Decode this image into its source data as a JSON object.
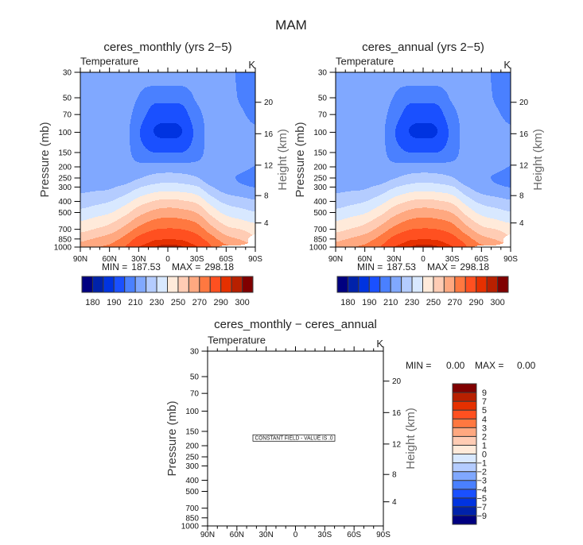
{
  "figure": {
    "title": "MAM"
  },
  "chart_data": [
    {
      "type": "heatmap",
      "title": "ceres_monthly (yrs 2−5)",
      "left_string": "Temperature",
      "right_string": "K",
      "xlabel": "",
      "ylabel": "Pressure (mb)",
      "y2label": "Height (km)",
      "xlim": [
        90,
        -90
      ],
      "ylim": [
        30,
        1000
      ],
      "yscale": "log",
      "grid": false,
      "x_ticks": {
        "values": [
          90,
          60,
          30,
          0,
          -30,
          -60,
          -90
        ],
        "labels": [
          "90N",
          "60N",
          "30N",
          "0",
          "30S",
          "60S",
          "90S"
        ],
        "minor_step": 10
      },
      "y_ticks": [
        30,
        50,
        70,
        100,
        150,
        200,
        250,
        300,
        400,
        500,
        700,
        850,
        1000
      ],
      "y2_ticks": [
        4,
        8,
        12,
        16,
        20
      ],
      "stats": {
        "min_label": "MIN =",
        "min": "187.53",
        "max_label": "MAX =",
        "max": "298.18"
      },
      "colorbar": {
        "placement": "bottom",
        "levels": [
          180,
          185,
          190,
          200,
          210,
          220,
          230,
          240,
          250,
          260,
          270,
          280,
          290,
          295,
          300
        ],
        "label_levels": [
          180,
          190,
          210,
          230,
          250,
          270,
          290,
          300
        ],
        "labels": [
          "180",
          "190",
          "210",
          "230",
          "250",
          "270",
          "290",
          "300"
        ],
        "colors": [
          "#000080",
          "#0022AA",
          "#0033E0",
          "#1A50FF",
          "#4A80FF",
          "#80A8FF",
          "#B4CCFF",
          "#D8E8FF",
          "#FFEADA",
          "#FFCCB4",
          "#FFA880",
          "#FF7840",
          "#FF5020",
          "#E53000",
          "#B82000",
          "#800000"
        ]
      },
      "lat": [
        90,
        75,
        60,
        45,
        30,
        15,
        0,
        -15,
        -30,
        -45,
        -60,
        -75,
        -90
      ],
      "pressure": [
        30,
        50,
        70,
        100,
        150,
        200,
        250,
        300,
        400,
        500,
        600,
        700,
        850,
        925,
        1000
      ],
      "values": [
        [
          216,
          215,
          214.5,
          214,
          214,
          214.5,
          215.5,
          217.5,
          224.2,
          232.9,
          240.5,
          246.9,
          256.5,
          261,
          263.5
        ],
        [
          216,
          215,
          214.5,
          214.5,
          214.5,
          215,
          216,
          218,
          226.8,
          235.8,
          243.6,
          250.5,
          260.7,
          265.2,
          268.5
        ],
        [
          216,
          215.5,
          215,
          215,
          215.5,
          216,
          217,
          218.8,
          229.6,
          239,
          247.5,
          255,
          264.6,
          268.7,
          273
        ],
        [
          215,
          214.5,
          214,
          214,
          214,
          214,
          215,
          222.6,
          235.6,
          246.2,
          255.4,
          263.1,
          272.6,
          276.7,
          279.3
        ],
        [
          213.5,
          209.6,
          205.5,
          201,
          205,
          212.4,
          219.3,
          229.1,
          244.3,
          256,
          265.3,
          273.1,
          282.9,
          286.5,
          289.8
        ],
        [
          216.5,
          203.5,
          195.9,
          190.2,
          200.1,
          213.3,
          223.5,
          233.7,
          250.3,
          262.5,
          271.7,
          279.3,
          288.2,
          291.6,
          294.3
        ],
        [
          216.5,
          203.5,
          194.5,
          187.53,
          200.2,
          213.7,
          225.2,
          235.4,
          252.6,
          264.8,
          273.8,
          280.9,
          289.4,
          293.4,
          298.18
        ],
        [
          216.5,
          203.8,
          196,
          190.2,
          200.1,
          213.5,
          224,
          234.3,
          251.1,
          263.4,
          272.5,
          279.9,
          288.5,
          292.1,
          295.4
        ],
        [
          214.5,
          211.5,
          207,
          203.5,
          206,
          213,
          220.7,
          231.2,
          247.4,
          259.4,
          268.4,
          275.5,
          283.9,
          287.4,
          290.2
        ],
        [
          214,
          213.5,
          213.5,
          214,
          214,
          213.5,
          213,
          221,
          235.2,
          246.4,
          255.8,
          263.9,
          273.9,
          278.1,
          280
        ],
        [
          212.5,
          212.5,
          212.5,
          213,
          213,
          212.5,
          211.3,
          214.5,
          227.1,
          237.1,
          245.8,
          253.6,
          263.6,
          268.3,
          null
        ],
        [
          208.5,
          209.3,
          210.8,
          212,
          212,
          211.5,
          209.3,
          212,
          224,
          233.7,
          242,
          250,
          258.9,
          263,
          null
        ],
        [
          206,
          207,
          208.5,
          211,
          211.5,
          209.8,
          207.5,
          209.8,
          221.3,
          230.6,
          238.6,
          245.3,
          null,
          null,
          null
        ]
      ]
    },
    {
      "type": "heatmap",
      "title": "ceres_annual (yrs 2−5)",
      "left_string": "Temperature",
      "right_string": "K",
      "xlabel": "",
      "ylabel": "Pressure (mb)",
      "y2label": "Height (km)",
      "xlim": [
        90,
        -90
      ],
      "ylim": [
        30,
        1000
      ],
      "yscale": "log",
      "grid": false,
      "x_ticks": {
        "values": [
          90,
          60,
          30,
          0,
          -30,
          -60,
          -90
        ],
        "labels": [
          "90N",
          "60N",
          "30N",
          "0",
          "30S",
          "60S",
          "90S"
        ],
        "minor_step": 10
      },
      "y_ticks": [
        30,
        50,
        70,
        100,
        150,
        200,
        250,
        300,
        400,
        500,
        700,
        850,
        1000
      ],
      "y2_ticks": [
        4,
        8,
        12,
        16,
        20
      ],
      "stats": {
        "min_label": "MIN =",
        "min": "187.53",
        "max_label": "MAX =",
        "max": "298.18"
      },
      "colorbar": {
        "placement": "bottom",
        "levels": [
          180,
          185,
          190,
          200,
          210,
          220,
          230,
          240,
          250,
          260,
          270,
          280,
          290,
          295,
          300
        ],
        "label_levels": [
          180,
          190,
          210,
          230,
          250,
          270,
          290,
          300
        ],
        "labels": [
          "180",
          "190",
          "210",
          "230",
          "250",
          "270",
          "290",
          "300"
        ],
        "colors": [
          "#000080",
          "#0022AA",
          "#0033E0",
          "#1A50FF",
          "#4A80FF",
          "#80A8FF",
          "#B4CCFF",
          "#D8E8FF",
          "#FFEADA",
          "#FFCCB4",
          "#FFA880",
          "#FF7840",
          "#FF5020",
          "#E53000",
          "#B82000",
          "#800000"
        ]
      },
      "lat": [
        90,
        75,
        60,
        45,
        30,
        15,
        0,
        -15,
        -30,
        -45,
        -60,
        -75,
        -90
      ],
      "pressure": [
        30,
        50,
        70,
        100,
        150,
        200,
        250,
        300,
        400,
        500,
        600,
        700,
        850,
        925,
        1000
      ],
      "values": [
        [
          216,
          215,
          214.5,
          214,
          214,
          214.5,
          215.5,
          217.5,
          224.2,
          232.9,
          240.5,
          246.9,
          256.5,
          261,
          263.5
        ],
        [
          216,
          215,
          214.5,
          214.5,
          214.5,
          215,
          216,
          218,
          226.8,
          235.8,
          243.6,
          250.5,
          260.7,
          265.2,
          268.5
        ],
        [
          216,
          215.5,
          215,
          215,
          215.5,
          216,
          217,
          218.8,
          229.6,
          239,
          247.5,
          255,
          264.6,
          268.7,
          273
        ],
        [
          215,
          214.5,
          214,
          214,
          214,
          214,
          215,
          222.6,
          235.6,
          246.2,
          255.4,
          263.1,
          272.6,
          276.7,
          279.3
        ],
        [
          213.5,
          209.6,
          205.5,
          201,
          205,
          212.4,
          219.3,
          229.1,
          244.3,
          256,
          265.3,
          273.1,
          282.9,
          286.5,
          289.8
        ],
        [
          216.5,
          203.5,
          195.9,
          190.2,
          200.1,
          213.3,
          223.5,
          233.7,
          250.3,
          262.5,
          271.7,
          279.3,
          288.2,
          291.6,
          294.3
        ],
        [
          216.5,
          203.5,
          194.5,
          187.53,
          200.2,
          213.7,
          225.2,
          235.4,
          252.6,
          264.8,
          273.8,
          280.9,
          289.4,
          293.4,
          298.18
        ],
        [
          216.5,
          203.8,
          196,
          190.2,
          200.1,
          213.5,
          224,
          234.3,
          251.1,
          263.4,
          272.5,
          279.9,
          288.5,
          292.1,
          295.4
        ],
        [
          214.5,
          211.5,
          207,
          203.5,
          206,
          213,
          220.7,
          231.2,
          247.4,
          259.4,
          268.4,
          275.5,
          283.9,
          287.4,
          290.2
        ],
        [
          214,
          213.5,
          213.5,
          214,
          214,
          213.5,
          213,
          221,
          235.2,
          246.4,
          255.8,
          263.9,
          273.9,
          278.1,
          280
        ],
        [
          212.5,
          212.5,
          212.5,
          213,
          213,
          212.5,
          211.3,
          214.5,
          227.1,
          237.1,
          245.8,
          253.6,
          263.6,
          268.3,
          null
        ],
        [
          208.5,
          209.3,
          210.8,
          212,
          212,
          211.5,
          209.3,
          212,
          224,
          233.7,
          242,
          250,
          258.9,
          263,
          null
        ],
        [
          206,
          207,
          208.5,
          211,
          211.5,
          209.8,
          207.5,
          209.8,
          221.3,
          230.6,
          238.6,
          245.3,
          null,
          null,
          null
        ]
      ]
    },
    {
      "type": "heatmap",
      "title": "ceres_monthly − ceres_annual",
      "left_string": "Temperature",
      "right_string": "K",
      "xlabel": "",
      "ylabel": "Pressure (mb)",
      "y2label": "Height (km)",
      "xlim": [
        90,
        -90
      ],
      "ylim": [
        30,
        1000
      ],
      "yscale": "log",
      "grid": false,
      "x_ticks": {
        "values": [
          90,
          60,
          30,
          0,
          -30,
          -60,
          -90
        ],
        "labels": [
          "90N",
          "60N",
          "30N",
          "0",
          "30S",
          "60S",
          "90S"
        ],
        "minor_step": 10
      },
      "y_ticks": [
        30,
        50,
        70,
        100,
        150,
        200,
        250,
        300,
        400,
        500,
        700,
        850,
        1000
      ],
      "y2_ticks": [
        4,
        8,
        12,
        16,
        20
      ],
      "constant_value": 0.0,
      "annotation": "CONSTANT FIELD - VALUE IS .0",
      "stats": {
        "min_label": "MIN =",
        "min": "0.00",
        "max_label": "MAX =",
        "max": "0.00"
      },
      "colorbar": {
        "placement": "right",
        "levels": [
          -9,
          -7,
          -5,
          -4,
          -3,
          -2,
          -1,
          0,
          1,
          2,
          3,
          4,
          5,
          7,
          9
        ],
        "labels": [
          "−9",
          "−7",
          "−5",
          "−4",
          "−3",
          "−2",
          "−1",
          "0",
          "1",
          "2",
          "3",
          "4",
          "5",
          "7",
          "9"
        ],
        "colors": [
          "#000080",
          "#0022AA",
          "#0033E0",
          "#1A50FF",
          "#4A80FF",
          "#80A8FF",
          "#B4CCFF",
          "#D8E8FF",
          "#FFEADA",
          "#FFCCB4",
          "#FFA880",
          "#FF7840",
          "#FF5020",
          "#E53000",
          "#B82000",
          "#800000"
        ]
      }
    }
  ]
}
